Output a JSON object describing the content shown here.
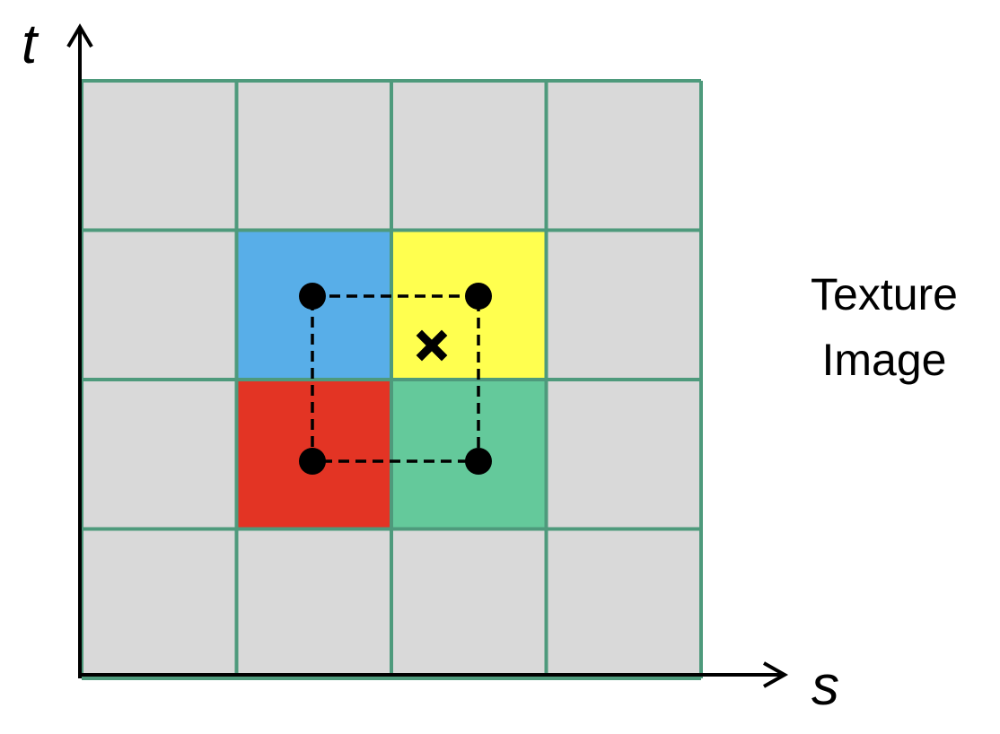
{
  "axes": {
    "vertical_label": "t",
    "horizontal_label": "s"
  },
  "caption": {
    "line1": "Texture",
    "line2": "Image"
  },
  "grid": {
    "rows": 4,
    "cols": 4,
    "line_color": "#4e9a7c",
    "base_fill": "#d9d9d9"
  },
  "highlighted_texels": [
    {
      "name": "texel-blue",
      "row": 1,
      "col": 1,
      "color": "#58aee8"
    },
    {
      "name": "texel-yellow",
      "row": 1,
      "col": 2,
      "color": "#ffff4f"
    },
    {
      "name": "texel-red",
      "row": 2,
      "col": 1,
      "color": "#e33424"
    },
    {
      "name": "texel-green",
      "row": 2,
      "col": 2,
      "color": "#64c99b"
    }
  ],
  "sample_points": [
    "top-left",
    "top-right",
    "bottom-left",
    "bottom-right"
  ],
  "query_marker": "x-mark-icon"
}
